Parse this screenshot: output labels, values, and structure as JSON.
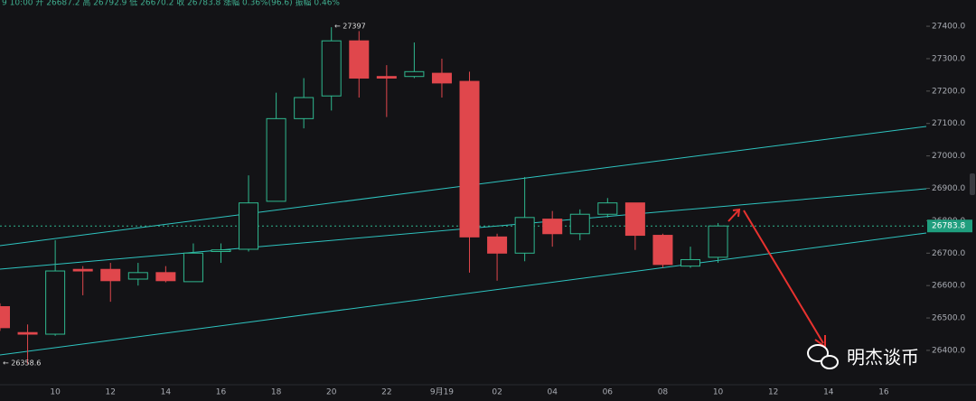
{
  "chart_data": {
    "type": "candlestick",
    "header": "9 10:00 开 26687.2 高 26792.9 低 26670.2 收 26783.8 涨幅 0.36%(96.6) 振幅 0.46%",
    "categories": [
      null,
      null,
      "10",
      null,
      "12",
      null,
      "14",
      null,
      "16",
      null,
      "18",
      null,
      "20",
      null,
      "22",
      null,
      "9月19",
      null,
      "02",
      null,
      "04",
      null,
      "06",
      null,
      "08",
      null,
      "10",
      null,
      "12",
      null,
      "14",
      null,
      "16",
      null
    ],
    "open": [
      26535,
      26455,
      26450,
      26650,
      26650,
      26620,
      26640,
      26612,
      26705,
      26712,
      26860,
      27115,
      27185,
      27355,
      27245,
      27245,
      27255,
      27230,
      26750,
      26700,
      26805,
      26760,
      26820,
      26855,
      26755,
      26660,
      26687.2,
      null,
      null,
      null,
      null,
      null,
      null,
      null
    ],
    "high": [
      26545,
      26480,
      26740,
      26660,
      26670,
      26670,
      26660,
      26730,
      26730,
      26940,
      27195,
      27240,
      27397,
      27385,
      27280,
      27350,
      27300,
      27260,
      26760,
      26935,
      26830,
      26835,
      26870,
      26855,
      26760,
      26720,
      26792.9,
      null,
      null,
      null,
      null,
      null,
      null,
      null
    ],
    "low": [
      26460,
      26358.6,
      26445,
      26570,
      26550,
      26600,
      26610,
      26612,
      26670,
      26705,
      26860,
      27085,
      27140,
      27180,
      27120,
      27240,
      27180,
      26640,
      26615,
      26675,
      26720,
      26740,
      26810,
      26710,
      26655,
      26655,
      26670.2,
      null,
      null,
      null,
      null,
      null,
      null,
      null
    ],
    "close": [
      26470,
      26450,
      26645,
      26645,
      26615,
      26640,
      26615,
      26700,
      26710,
      26855,
      27115,
      27180,
      27355,
      27240,
      27240,
      27260,
      27225,
      26750,
      26700,
      26810,
      26760,
      26820,
      26855,
      26755,
      26665,
      26680,
      26783.8,
      null,
      null,
      null,
      null,
      null,
      null,
      null
    ],
    "up_color": "#2fb88f",
    "down_color": "#e0474c",
    "ylim": [
      26294,
      27481
    ],
    "yticks": [
      {
        "value": 26400,
        "label": "26400.0"
      },
      {
        "value": 26500,
        "label": "26500.0"
      },
      {
        "value": 26600,
        "label": "26600.0"
      },
      {
        "value": 26700,
        "label": "26700.0"
      },
      {
        "value": 26800,
        "label": "26800.0"
      },
      {
        "value": 26900,
        "label": "26900.0"
      },
      {
        "value": 27000,
        "label": "27000.0"
      },
      {
        "value": 27100,
        "label": "27100.0"
      },
      {
        "value": 27200,
        "label": "27200.0"
      },
      {
        "value": 27300,
        "label": "27300.0"
      },
      {
        "value": 27400,
        "label": "27400.0"
      }
    ],
    "max_label": "← 27397",
    "min_label": "← 26358.6",
    "watermark": "明杰谈币"
  }
}
